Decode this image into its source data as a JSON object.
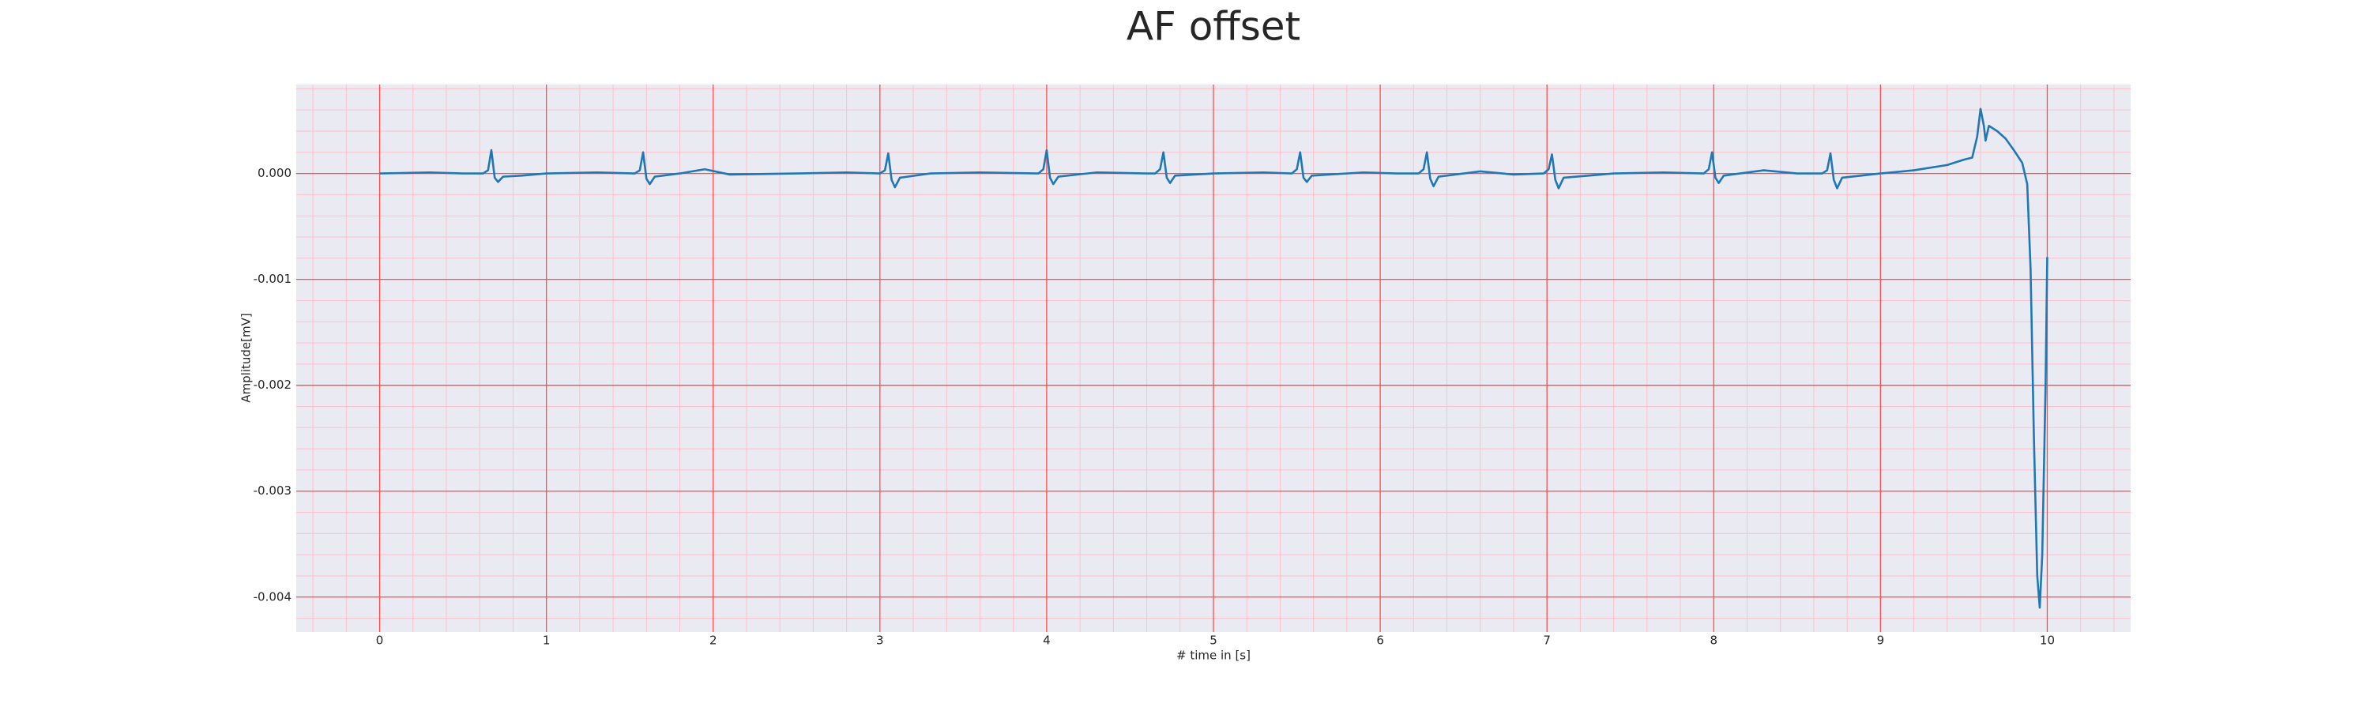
{
  "chart_data": {
    "type": "line",
    "title": "AF offset",
    "xlabel": "# time in [s]",
    "ylabel": "Amplitude[mV]",
    "color": "#1f77b4",
    "grid": true,
    "grid_color": "#ff4d4d",
    "minor_grid": true,
    "minor_grid_color": "#ffc0cb",
    "xlim": [
      -0.5,
      10.5
    ],
    "ylim": [
      -0.00433,
      0.00084
    ],
    "xticks": [
      0,
      1,
      2,
      3,
      4,
      5,
      6,
      7,
      8,
      9,
      10
    ],
    "yticks": [
      {
        "value": 0,
        "label": "0.000"
      },
      {
        "value": -0.001,
        "label": "-0.001"
      },
      {
        "value": -0.002,
        "label": "-0.002"
      },
      {
        "value": -0.003,
        "label": "-0.003"
      },
      {
        "value": -0.004,
        "label": "-0.004"
      }
    ],
    "xminorticks": [
      -0.4,
      -0.2,
      0.2,
      0.4,
      0.6,
      0.8,
      1.2,
      1.4,
      1.6,
      1.8,
      2.2,
      2.4,
      2.6,
      2.8,
      3.2,
      3.4,
      3.6,
      3.8,
      4.2,
      4.4,
      4.6,
      4.8,
      5.2,
      5.4,
      5.6,
      5.8,
      6.2,
      6.4,
      6.6,
      6.8,
      7.2,
      7.4,
      7.6,
      7.8,
      8.2,
      8.4,
      8.6,
      8.8,
      9.2,
      9.4,
      9.6,
      9.8,
      10.2,
      10.4
    ],
    "yminorticks": [
      0.0008,
      0.0006,
      0.0004,
      0.0002,
      -0.0002,
      -0.0004,
      -0.0006,
      -0.0008,
      -0.0012,
      -0.0014,
      -0.0016,
      -0.0018,
      -0.0022,
      -0.0024,
      -0.0026,
      -0.0028,
      -0.0032,
      -0.0034,
      -0.0036,
      -0.0038,
      -0.0042
    ],
    "x": [
      0,
      0.3,
      0.5,
      0.62,
      0.65,
      0.67,
      0.69,
      0.71,
      0.74,
      0.85,
      1.0,
      1.3,
      1.53,
      1.56,
      1.58,
      1.6,
      1.62,
      1.65,
      1.8,
      1.95,
      2.1,
      2.5,
      2.8,
      3.0,
      3.03,
      3.05,
      3.07,
      3.09,
      3.12,
      3.3,
      3.6,
      3.95,
      3.98,
      4.0,
      4.02,
      4.04,
      4.07,
      4.3,
      4.6,
      4.65,
      4.68,
      4.7,
      4.72,
      4.74,
      4.77,
      5.0,
      5.3,
      5.47,
      5.5,
      5.52,
      5.54,
      5.56,
      5.59,
      5.9,
      6.1,
      6.23,
      6.26,
      6.28,
      6.3,
      6.32,
      6.35,
      6.6,
      6.8,
      6.98,
      7.01,
      7.03,
      7.05,
      7.07,
      7.1,
      7.4,
      7.7,
      7.94,
      7.97,
      7.99,
      8.01,
      8.03,
      8.06,
      8.3,
      8.5,
      8.65,
      8.68,
      8.7,
      8.72,
      8.74,
      8.77,
      9.0,
      9.2,
      9.4,
      9.5,
      9.55,
      9.58,
      9.6,
      9.62,
      9.63,
      9.65,
      9.7,
      9.75,
      9.8,
      9.85,
      9.88,
      9.9,
      9.92,
      9.94,
      9.955,
      9.97,
      9.99,
      10.0
    ],
    "values": [
      0,
      1e-05,
      0,
      0,
      3e-05,
      0.00022,
      -4e-05,
      -8e-05,
      -3e-05,
      -2e-05,
      0,
      1e-05,
      0,
      3e-05,
      0.0002,
      -5e-05,
      -0.0001,
      -3e-05,
      0,
      4e-05,
      -1e-05,
      0,
      1e-05,
      0,
      3e-05,
      0.00019,
      -6e-05,
      -0.00013,
      -4e-05,
      0,
      1e-05,
      0,
      4e-05,
      0.00022,
      -4e-05,
      -0.0001,
      -3e-05,
      1e-05,
      0,
      0,
      4e-05,
      0.0002,
      -4e-05,
      -9e-05,
      -2e-05,
      0,
      1e-05,
      0,
      4e-05,
      0.0002,
      -4e-05,
      -8e-05,
      -2e-05,
      1e-05,
      0,
      0,
      4e-05,
      0.0002,
      -5e-05,
      -0.00012,
      -3e-05,
      2e-05,
      -1e-05,
      0,
      4e-05,
      0.00018,
      -6e-05,
      -0.00014,
      -4e-05,
      0,
      1e-05,
      0,
      4e-05,
      0.0002,
      -4e-05,
      -9e-05,
      -2e-05,
      3e-05,
      0,
      0,
      3e-05,
      0.00019,
      -6e-05,
      -0.00014,
      -4e-05,
      0,
      3e-05,
      8e-05,
      0.00013,
      0.00015,
      0.00035,
      0.00061,
      0.00045,
      0.00031,
      0.00045,
      0.0004,
      0.00033,
      0.00022,
      0.0001,
      -0.0001,
      -0.0009,
      -0.0025,
      -0.0038,
      -0.0041,
      -0.0036,
      -0.002,
      -0.00079
    ]
  }
}
